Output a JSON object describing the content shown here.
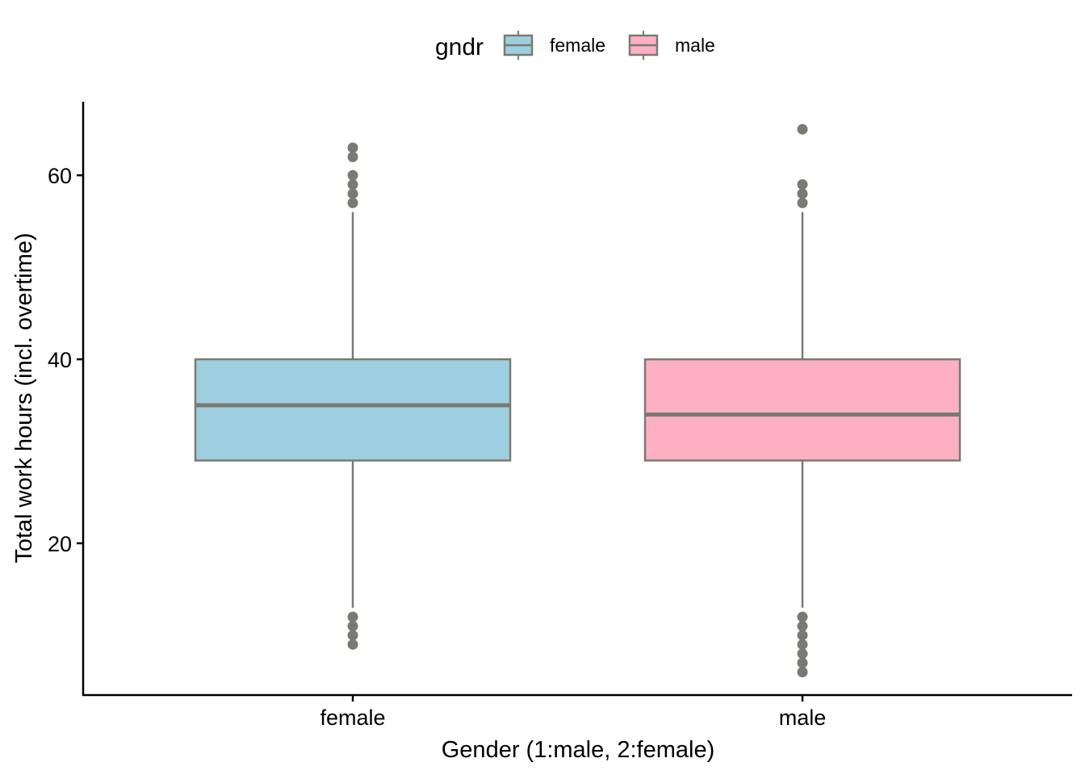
{
  "chart_data": {
    "type": "boxplot",
    "xlabel": "Gender (1:male, 2:female)",
    "ylabel": "Total work hours (incl. overtime)",
    "categories": [
      "female",
      "male"
    ],
    "ylim": [
      3.5,
      68
    ],
    "yticks": [
      20,
      40,
      60
    ],
    "grid": false,
    "legend": {
      "title": "gndr",
      "position": "top",
      "entries": [
        {
          "label": "female",
          "fill": "#9ECFE0"
        },
        {
          "label": "male",
          "fill": "#FDB0C2"
        }
      ]
    },
    "series": [
      {
        "category": "female",
        "fill": "#9ECFE0",
        "q1": 29,
        "median": 35,
        "q3": 40,
        "whisker_low": 13,
        "whisker_high": 56,
        "outliers": [
          63,
          62,
          60,
          59,
          58,
          57,
          12,
          11,
          10,
          9
        ]
      },
      {
        "category": "male",
        "fill": "#FDB0C2",
        "q1": 29,
        "median": 34,
        "q3": 40,
        "whisker_low": 13,
        "whisker_high": 56,
        "outliers": [
          65,
          59,
          58,
          57,
          12,
          11,
          10,
          9,
          8,
          7,
          6
        ]
      }
    ],
    "line_color": "#7A7A72",
    "axis_color": "#000000"
  }
}
